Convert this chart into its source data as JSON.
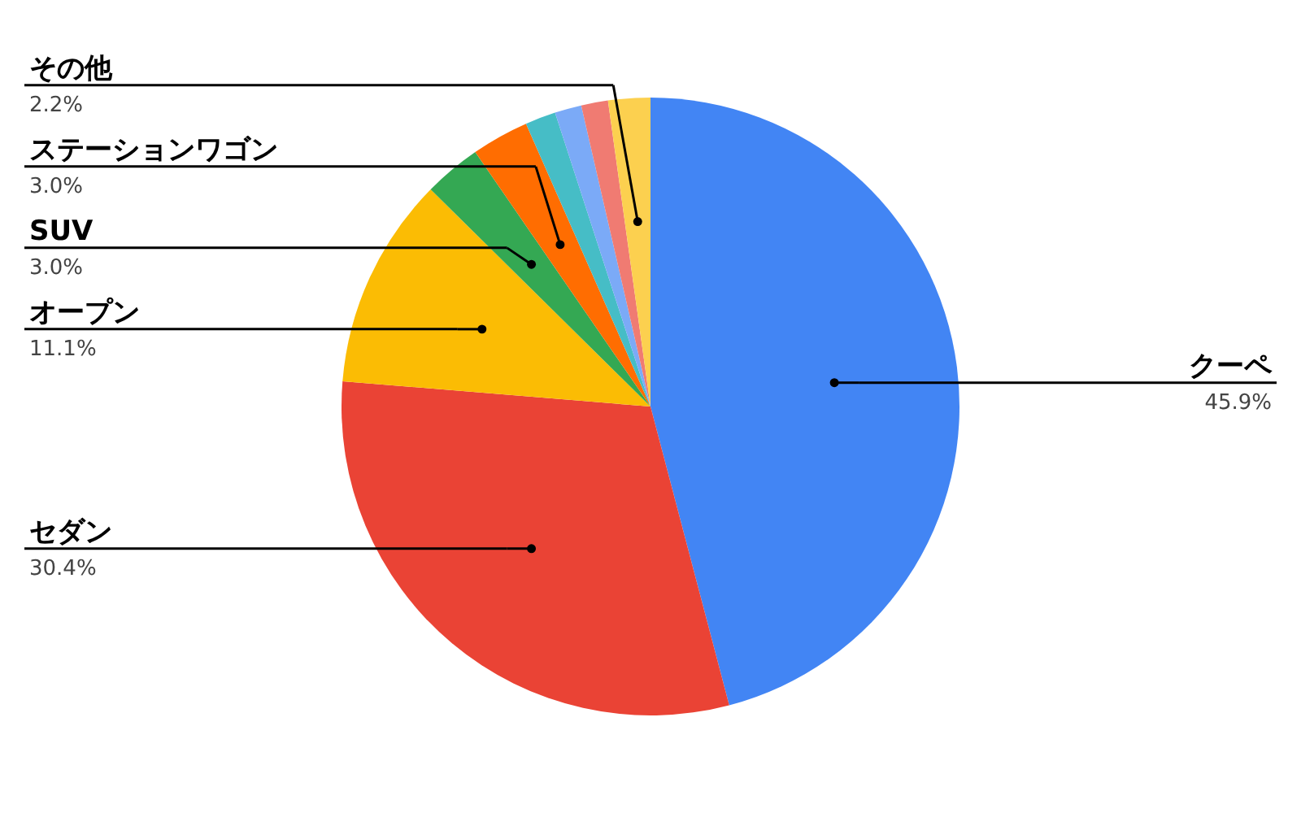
{
  "chart_data": {
    "type": "pie",
    "categories": [
      "クーペ",
      "セダン",
      "オープン",
      "SUV",
      "ステーションワゴン",
      null,
      null,
      null,
      "その他"
    ],
    "values": [
      45.9,
      30.4,
      11.1,
      3.0,
      3.0,
      1.6,
      1.4,
      1.4,
      2.2
    ],
    "value_labels": [
      "45.9%",
      "30.4%",
      "11.1%",
      "3.0%",
      "3.0%",
      null,
      null,
      null,
      "2.2%"
    ],
    "colors": [
      "#4285f4",
      "#ea4335",
      "#fbbc04",
      "#34a853",
      "#ff6d01",
      "#46bdc6",
      "#7baaf7",
      "#f07b72",
      "#fcd04f"
    ]
  }
}
